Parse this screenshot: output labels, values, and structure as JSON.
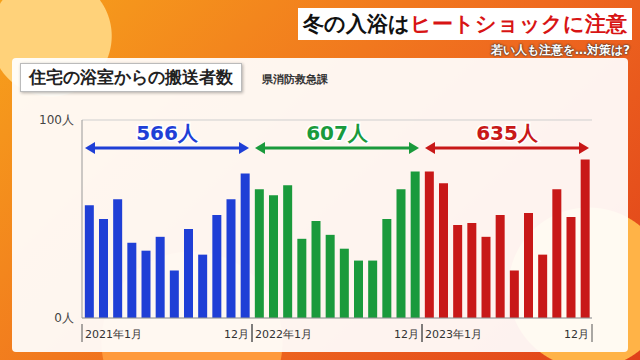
{
  "header": {
    "headline": [
      "冬の入浴は",
      "ヒートショックに注意"
    ],
    "subheadline": "若い人も注意を…対策は?"
  },
  "chart_data": {
    "type": "bar",
    "title": "住宅の浴室からの搬送者数",
    "source": "県消防救急課",
    "categories": [
      "2021年1月",
      null,
      null,
      null,
      null,
      null,
      null,
      null,
      null,
      null,
      null,
      "12月",
      "2022年1月",
      null,
      null,
      null,
      null,
      null,
      null,
      null,
      null,
      null,
      null,
      "12月",
      "2023年1月",
      null,
      null,
      null,
      null,
      null,
      null,
      null,
      null,
      null,
      null,
      "12月"
    ],
    "values": [
      57,
      50,
      60,
      38,
      34,
      41,
      24,
      45,
      32,
      52,
      60,
      73,
      65,
      62,
      67,
      40,
      49,
      42,
      35,
      29,
      29,
      50,
      65,
      74,
      74,
      68,
      47,
      48,
      41,
      52,
      24,
      53,
      32,
      65,
      51,
      80
    ],
    "colors": [
      "#1f3fd6",
      "#1f3fd6",
      "#1f3fd6",
      "#1f3fd6",
      "#1f3fd6",
      "#1f3fd6",
      "#1f3fd6",
      "#1f3fd6",
      "#1f3fd6",
      "#1f3fd6",
      "#1f3fd6",
      "#1f3fd6",
      "#1a9a3c",
      "#1a9a3c",
      "#1a9a3c",
      "#1a9a3c",
      "#1a9a3c",
      "#1a9a3c",
      "#1a9a3c",
      "#1a9a3c",
      "#1a9a3c",
      "#1a9a3c",
      "#1a9a3c",
      "#1a9a3c",
      "#c81818",
      "#c81818",
      "#c81818",
      "#c81818",
      "#c81818",
      "#c81818",
      "#c81818",
      "#c81818",
      "#c81818",
      "#c81818",
      "#c81818",
      "#c81818"
    ],
    "annotations": [
      "566人",
      "607人",
      "635人"
    ],
    "ylim": [
      0,
      100
    ],
    "yticks": [
      {
        "value": 0,
        "label": "0人"
      },
      {
        "value": 100,
        "label": "100人"
      }
    ],
    "grid": true
  }
}
